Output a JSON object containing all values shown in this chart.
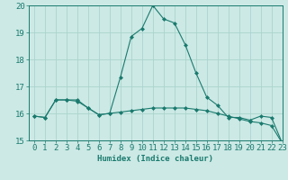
{
  "xlabel": "Humidex (Indice chaleur)",
  "background_color": "#cce9e5",
  "grid_color": "#aad4ce",
  "line_color": "#1a7a6e",
  "x_values": [
    0,
    1,
    2,
    3,
    4,
    5,
    6,
    7,
    8,
    9,
    10,
    11,
    12,
    13,
    14,
    15,
    16,
    17,
    18,
    19,
    20,
    21,
    22,
    23
  ],
  "y_curve1": [
    15.9,
    15.85,
    16.5,
    16.5,
    16.5,
    16.2,
    15.95,
    16.0,
    17.35,
    18.85,
    19.15,
    20.0,
    19.5,
    19.35,
    18.55,
    17.5,
    16.6,
    16.3,
    15.85,
    15.85,
    15.75,
    15.9,
    15.85,
    14.9
  ],
  "y_curve2": [
    15.9,
    15.85,
    16.5,
    16.5,
    16.45,
    16.2,
    15.95,
    16.0,
    16.05,
    16.1,
    16.15,
    16.2,
    16.2,
    16.2,
    16.2,
    16.15,
    16.1,
    16.0,
    15.9,
    15.8,
    15.7,
    15.65,
    15.55,
    14.9
  ],
  "ylim": [
    15,
    20
  ],
  "xlim": [
    -0.5,
    23
  ],
  "yticks": [
    15,
    16,
    17,
    18,
    19,
    20
  ],
  "xticks": [
    0,
    1,
    2,
    3,
    4,
    5,
    6,
    7,
    8,
    9,
    10,
    11,
    12,
    13,
    14,
    15,
    16,
    17,
    18,
    19,
    20,
    21,
    22,
    23
  ],
  "fontsize": 6.5
}
